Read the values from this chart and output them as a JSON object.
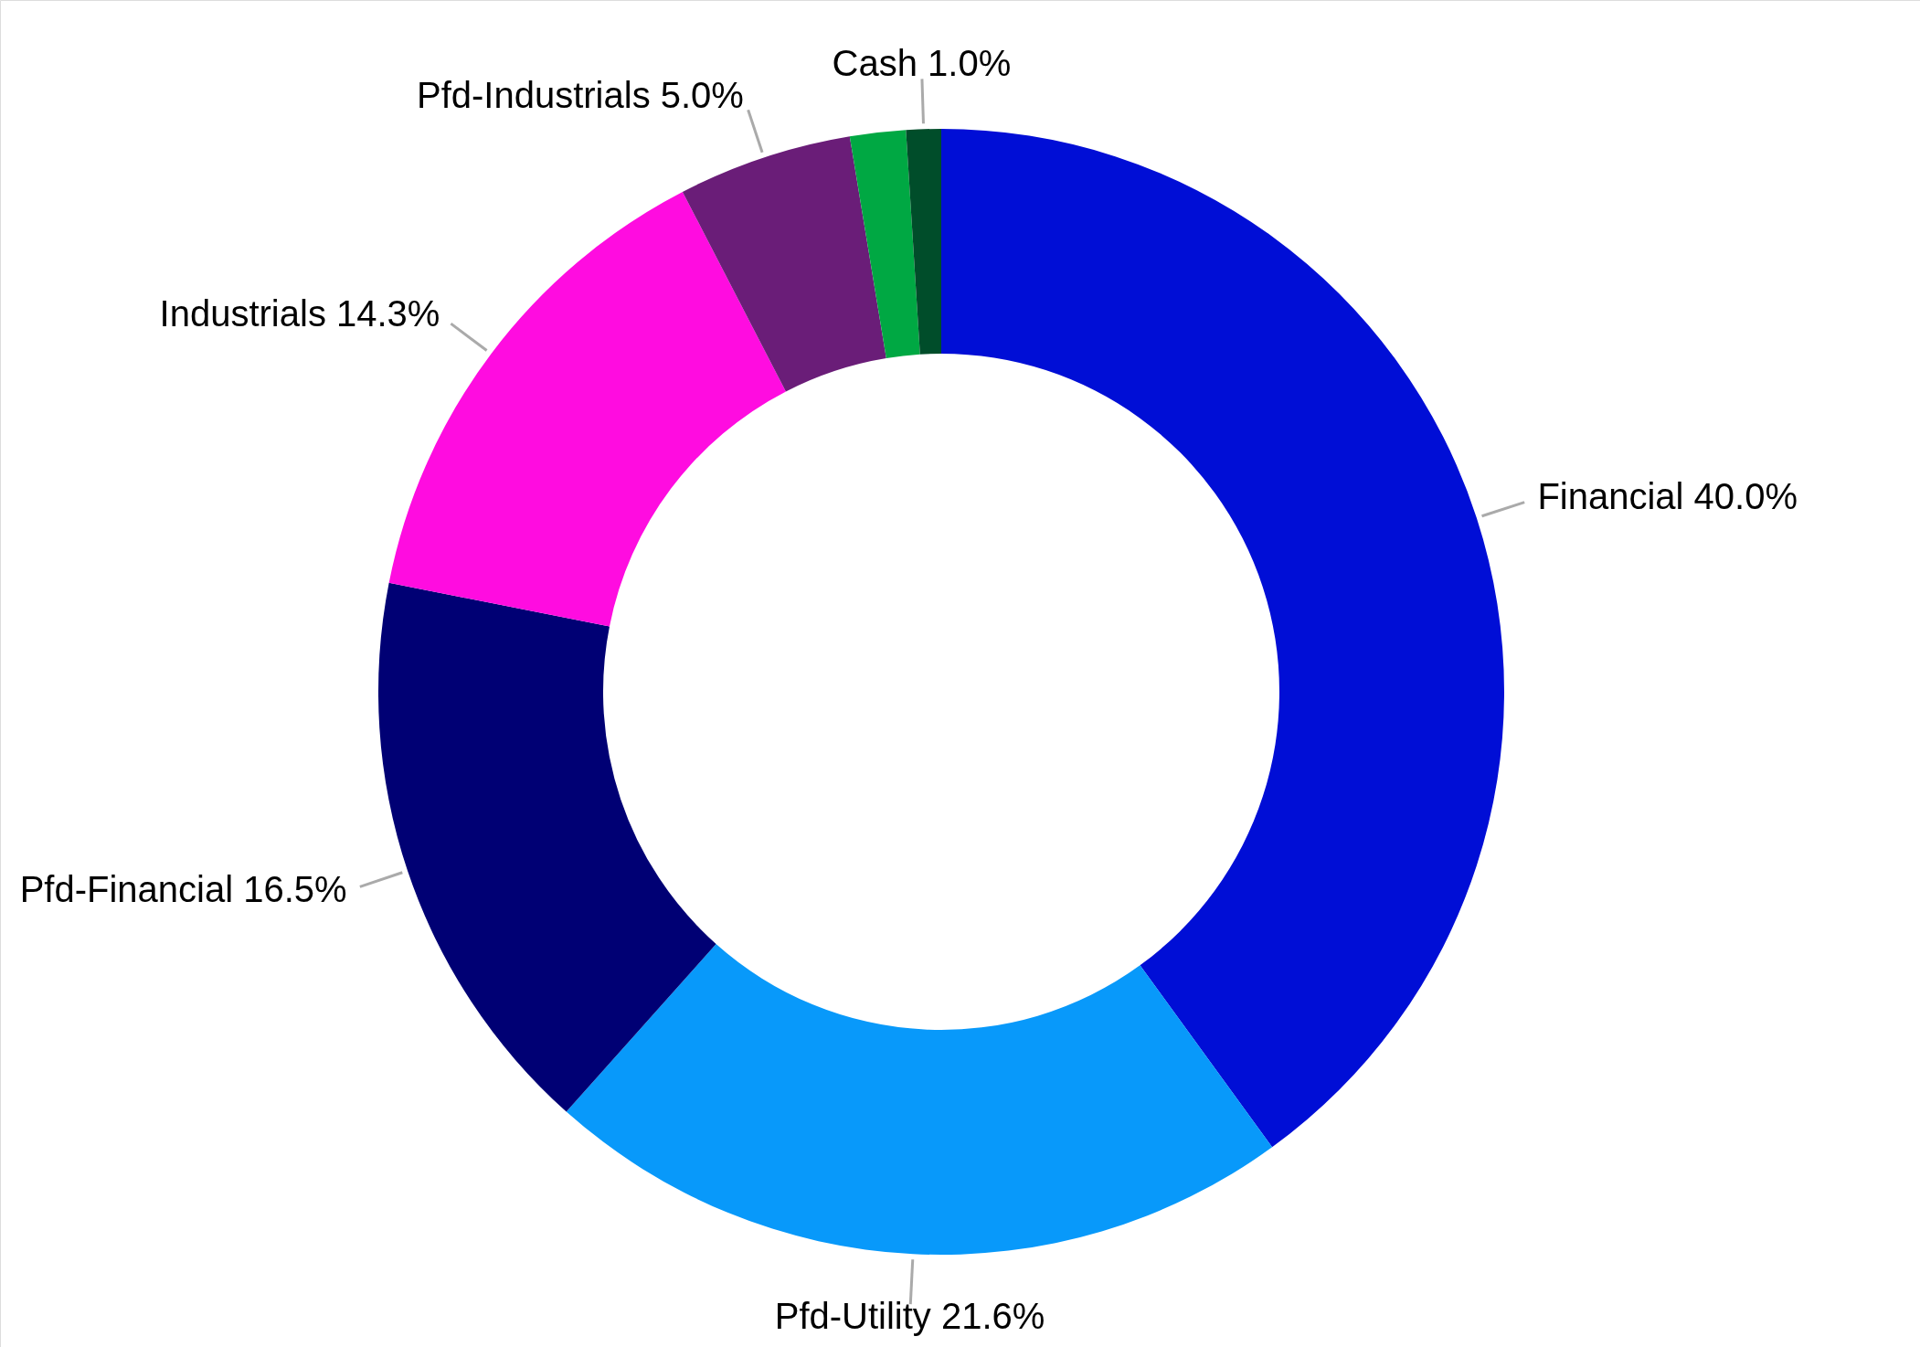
{
  "chart_data": {
    "type": "donut",
    "categories": [
      "Financial",
      "Pfd-Utility",
      "Pfd-Financial",
      "Industrials",
      "Pfd-Industrials",
      null,
      "Cash"
    ],
    "values": [
      40.0,
      21.6,
      16.5,
      14.3,
      5.0,
      1.6,
      1.0
    ],
    "colors": [
      "#000ed6",
      "#0899fa",
      "#000074",
      "#ff0ce0",
      "#6a1d78",
      "#00a843",
      "#004d2a"
    ],
    "value_labels": [
      "40.0%",
      "21.6%",
      "16.5%",
      "14.3%",
      "5.0%",
      null,
      "1.0%"
    ]
  }
}
